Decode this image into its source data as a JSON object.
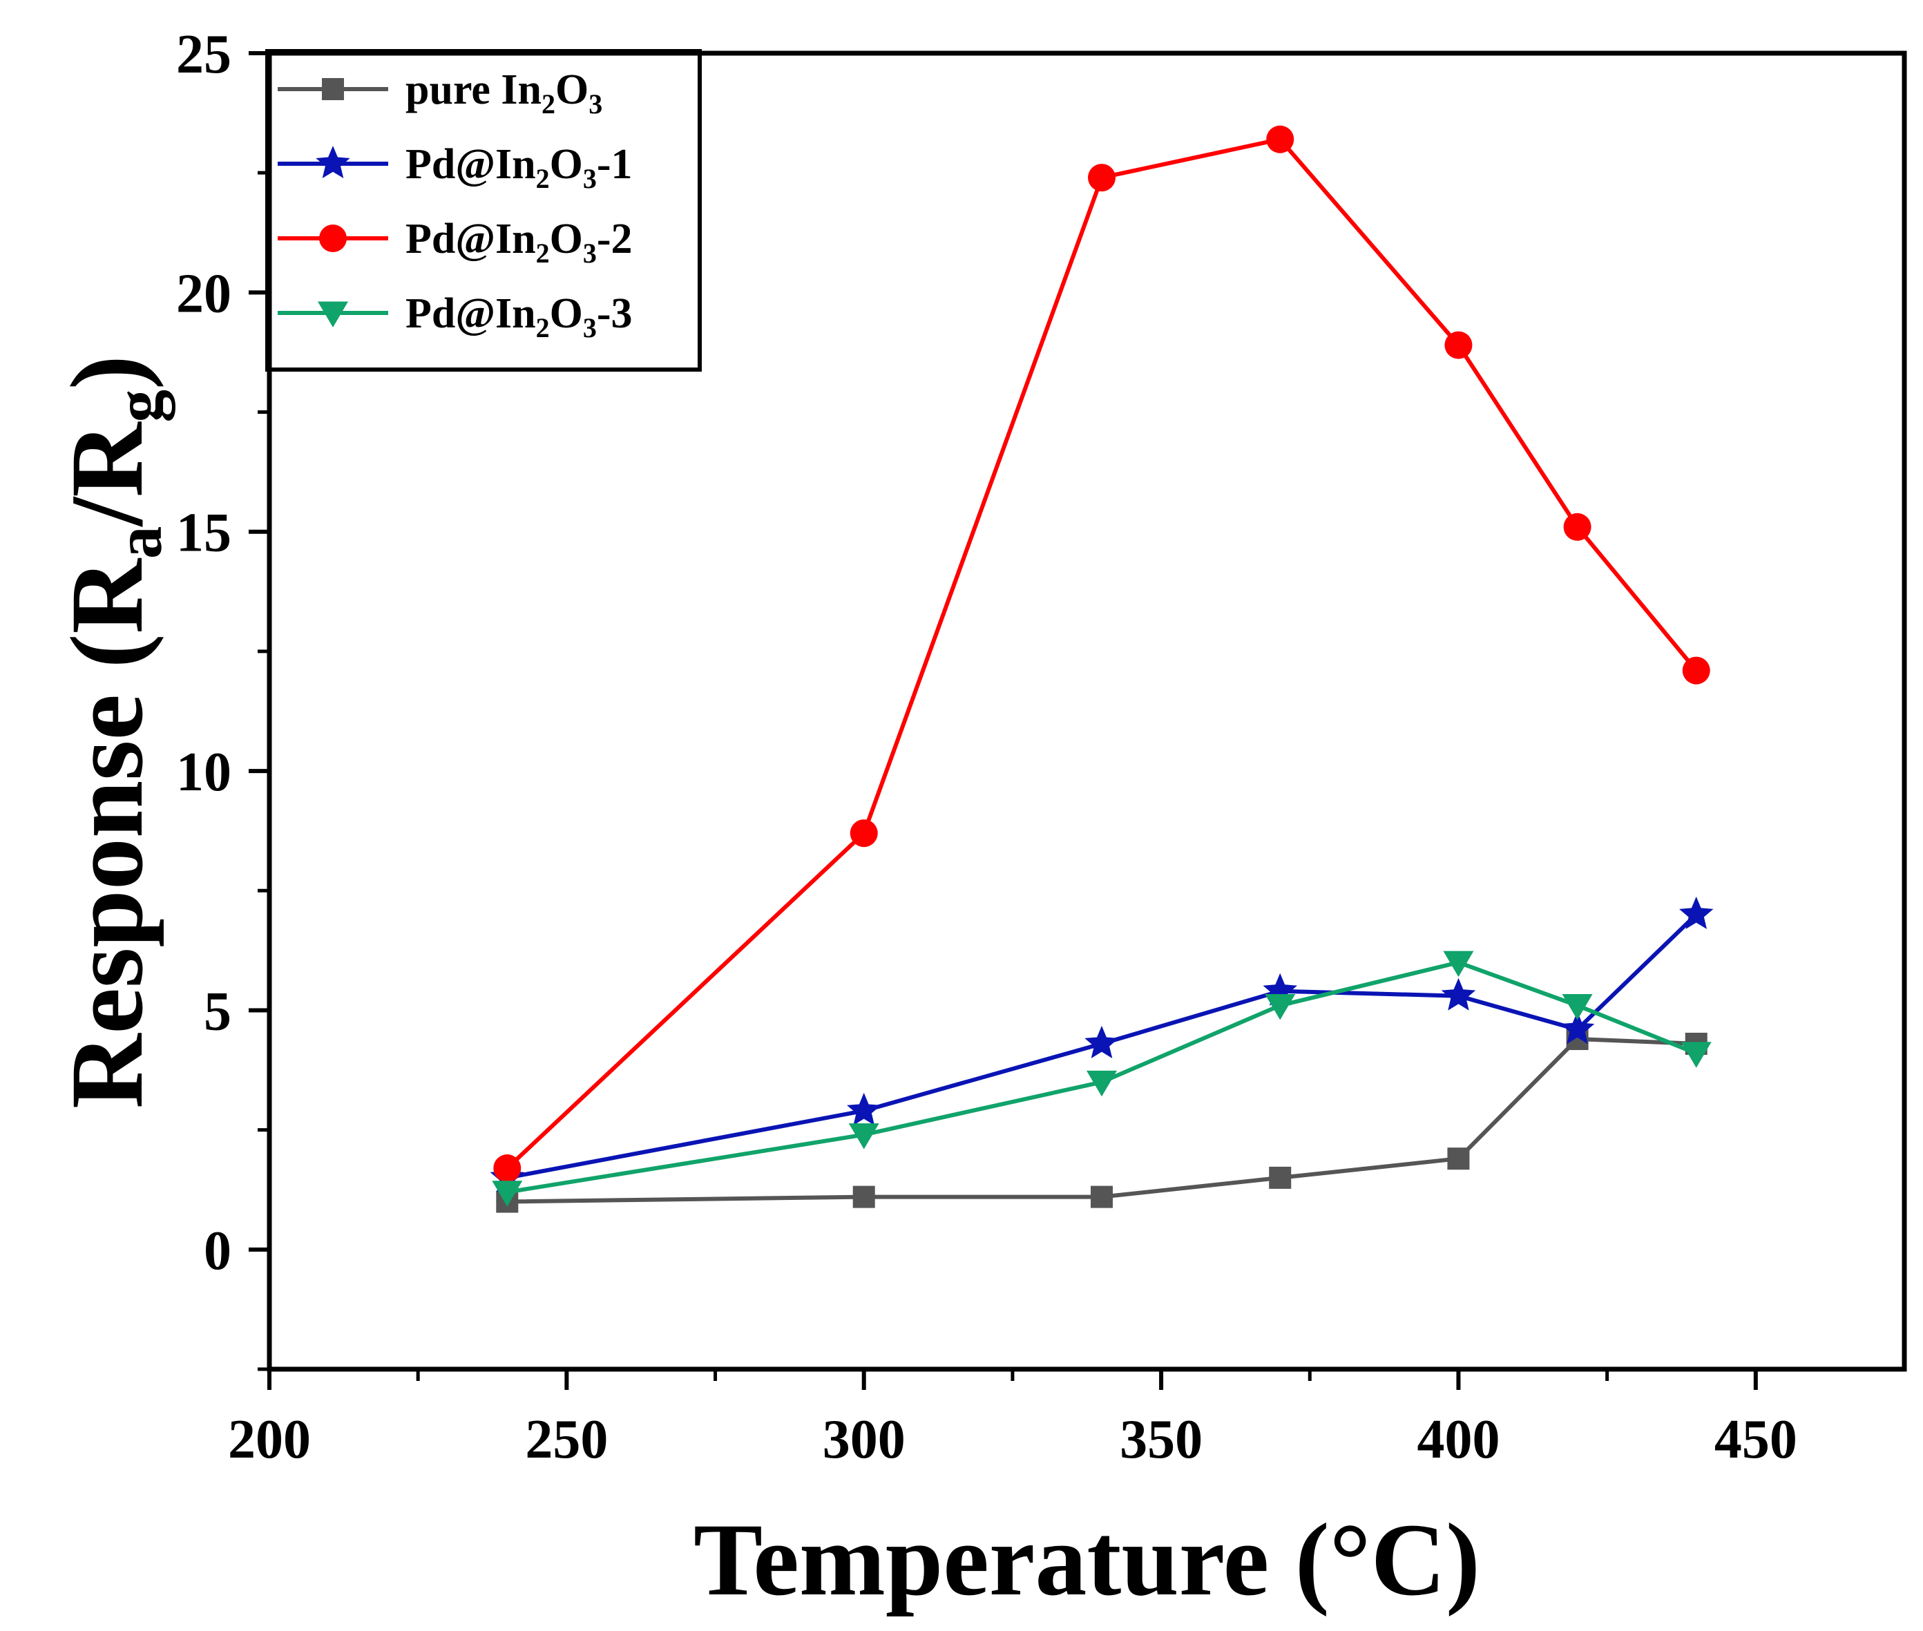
{
  "chart_data": {
    "type": "line",
    "title": "",
    "xlabel": "Temperature (°C)",
    "ylabel_parts": {
      "main": "Response (R",
      "sub1": "a",
      "mid": "/R",
      "sub2": "g",
      "end": ")"
    },
    "xlim": [
      200,
      475
    ],
    "ylim": [
      -2.5,
      25
    ],
    "xticks": [
      200,
      250,
      300,
      350,
      400,
      450
    ],
    "yticks": [
      0,
      5,
      10,
      15,
      20,
      25
    ],
    "x": [
      240,
      300,
      340,
      370,
      400,
      420,
      440
    ],
    "series": [
      {
        "name": "pure In2O3",
        "label_parts": [
          "pure In",
          "2",
          "O",
          "3",
          ""
        ],
        "color": "#555555",
        "marker": "square",
        "values": [
          1.0,
          1.1,
          1.1,
          1.5,
          1.9,
          4.4,
          4.3
        ]
      },
      {
        "name": "Pd@In2O3-1",
        "label_parts": [
          "Pd@In",
          "2",
          "O",
          "3",
          "-1"
        ],
        "color": "#0a14b4",
        "marker": "star",
        "values": [
          1.5,
          2.9,
          4.3,
          5.4,
          5.3,
          4.6,
          7.0
        ]
      },
      {
        "name": "Pd@In2O3-2",
        "label_parts": [
          "Pd@In",
          "2",
          "O",
          "3",
          "-2"
        ],
        "color": "#ff0000",
        "marker": "circle",
        "values": [
          1.7,
          8.7,
          22.4,
          23.2,
          18.9,
          15.1,
          12.1
        ]
      },
      {
        "name": "Pd@In2O3-3",
        "label_parts": [
          "Pd@In",
          "2",
          "O",
          "3",
          "-3"
        ],
        "color": "#10a36a",
        "marker": "triangle-down",
        "values": [
          1.2,
          2.4,
          3.5,
          5.1,
          6.0,
          5.1,
          4.1
        ]
      }
    ],
    "legend": "top-left",
    "grid": false
  }
}
